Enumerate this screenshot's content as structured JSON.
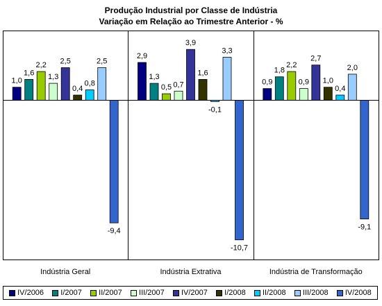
{
  "chart_data": {
    "type": "bar",
    "title": "Produção Industrial por Classe de Indústria",
    "subtitle": "Variação em Relação ao Trimestre Anterior - %",
    "xlabel": "",
    "ylabel": "",
    "ylim": [
      -11.5,
      4.5
    ],
    "grid": false,
    "legend_position": "bottom",
    "categories": [
      "Indústria Geral",
      "Indústria Extrativa",
      "Indústria de Transformação"
    ],
    "series": [
      {
        "name": "IV/2006",
        "color": "#000080",
        "values": [
          1.0,
          2.9,
          0.9
        ],
        "labels": [
          "1,0",
          "2,9",
          "0,9"
        ]
      },
      {
        "name": "I/2007",
        "color": "#008080",
        "values": [
          1.6,
          1.3,
          1.8
        ],
        "labels": [
          "1,6",
          "1,3",
          "1,8"
        ]
      },
      {
        "name": "II/2007",
        "color": "#99CC00",
        "values": [
          2.2,
          0.5,
          2.2
        ],
        "labels": [
          "2,2",
          "0,5",
          "2,2"
        ]
      },
      {
        "name": "III/2007",
        "color": "#CCFFCC",
        "values": [
          1.3,
          0.7,
          0.9
        ],
        "labels": [
          "1,3",
          "0,7",
          "0,9"
        ]
      },
      {
        "name": "IV/2007",
        "color": "#333399",
        "values": [
          2.5,
          3.9,
          2.7
        ],
        "labels": [
          "2,5",
          "3,9",
          "2,7"
        ]
      },
      {
        "name": "I/2008",
        "color": "#333300",
        "values": [
          0.4,
          1.6,
          1.0
        ],
        "labels": [
          "0,4",
          "1,6",
          "1,0"
        ]
      },
      {
        "name": "II/2008",
        "color": "#00CCFF",
        "values": [
          0.8,
          -0.1,
          0.4
        ],
        "labels": [
          "0,8",
          "-0,1",
          "0,4"
        ]
      },
      {
        "name": "III/2008",
        "color": "#99CCFF",
        "values": [
          2.5,
          3.3,
          2.0
        ],
        "labels": [
          "2,5",
          "3,3",
          "2,0"
        ]
      },
      {
        "name": "IV/2008",
        "color": "#3366CC",
        "values": [
          -9.4,
          -10.7,
          -9.1
        ],
        "labels": [
          "-9,4",
          "-10,7",
          "-9,1"
        ]
      }
    ]
  }
}
